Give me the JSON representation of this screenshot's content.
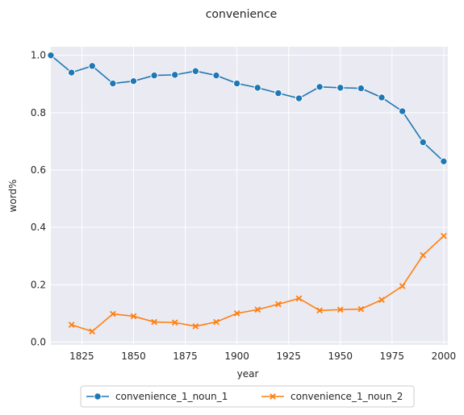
{
  "chart_data": {
    "type": "line",
    "title": "convenience",
    "xlabel": "year",
    "ylabel": "word%",
    "xlim": [
      1810,
      2002
    ],
    "ylim": [
      -0.01,
      1.03
    ],
    "xticks": [
      1825,
      1850,
      1875,
      1900,
      1925,
      1950,
      1975,
      2000
    ],
    "yticks": [
      0.0,
      0.2,
      0.4,
      0.6,
      0.8,
      1.0
    ],
    "ytick_labels": [
      "0.0",
      "0.2",
      "0.4",
      "0.6",
      "0.8",
      "1.0"
    ],
    "grid": true,
    "background": "#eaeaf2",
    "legend_placement": "bottom-center",
    "series": [
      {
        "name": "convenience_1_noun_1",
        "color": "#1f77b4",
        "marker": "circle",
        "x": [
          1810,
          1820,
          1830,
          1840,
          1850,
          1860,
          1870,
          1880,
          1890,
          1900,
          1910,
          1920,
          1930,
          1940,
          1950,
          1960,
          1970,
          1980,
          1990,
          2000
        ],
        "y": [
          1.0,
          0.94,
          0.963,
          0.902,
          0.91,
          0.93,
          0.932,
          0.945,
          0.93,
          0.902,
          0.887,
          0.868,
          0.85,
          0.89,
          0.887,
          0.885,
          0.853,
          0.805,
          0.697,
          0.63
        ]
      },
      {
        "name": "convenience_1_noun_2",
        "color": "#ff7f0e",
        "marker": "x",
        "x": [
          1820,
          1830,
          1840,
          1850,
          1860,
          1870,
          1880,
          1890,
          1900,
          1910,
          1920,
          1930,
          1940,
          1950,
          1960,
          1970,
          1980,
          1990,
          2000
        ],
        "y": [
          0.06,
          0.037,
          0.098,
          0.09,
          0.07,
          0.068,
          0.055,
          0.07,
          0.1,
          0.113,
          0.132,
          0.152,
          0.11,
          0.113,
          0.115,
          0.147,
          0.195,
          0.303,
          0.37
        ]
      }
    ]
  }
}
